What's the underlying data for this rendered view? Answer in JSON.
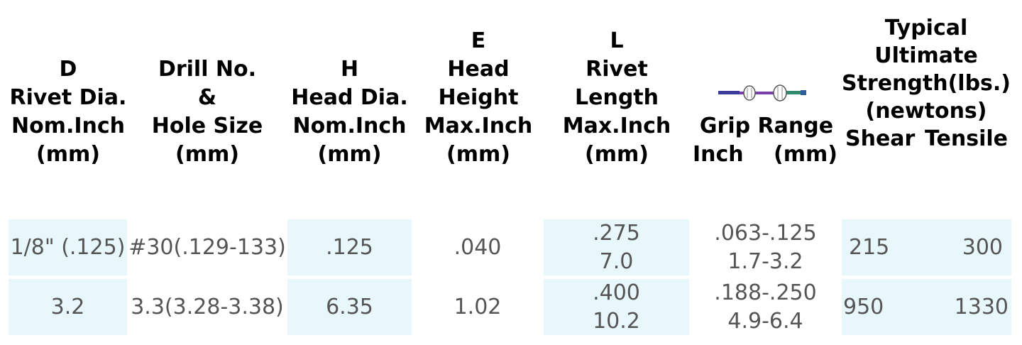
{
  "headers": {
    "col1": [
      "D",
      "Rivet Dia.",
      "Nom.Inch",
      "(mm)"
    ],
    "col2": [
      "Drill No.",
      "&",
      "Hole Size",
      "(mm)"
    ],
    "col3": [
      "H",
      "Head Dia.",
      "Nom.Inch",
      "(mm)"
    ],
    "col4": [
      "E",
      "Head",
      "Height",
      "Max.Inch",
      "(mm)"
    ],
    "col5": [
      "L",
      "Rivet",
      "Length",
      "Max.Inch",
      "(mm)"
    ],
    "col6_title": "Grip Range",
    "col6_inch": "Inch",
    "col6_mm": "(mm)",
    "col7": [
      "Typical",
      "Ultimate",
      "Strength(lbs.)",
      "(newtons)"
    ],
    "col7_shear": "Shear",
    "col7_tensile": "Tensile"
  },
  "rows": [
    {
      "rivet_dia": "1/8\" (.125)",
      "drill": "#30(.129-133)",
      "head_dia": ".125",
      "head_height": ".040",
      "length_1": ".275",
      "length_2": "7.0",
      "grip_1": ".063-.125",
      "grip_2": "1.7-3.2",
      "shear": "215",
      "tensile": "300"
    },
    {
      "rivet_dia": "3.2",
      "drill": "3.3(3.28-3.38)",
      "head_dia": "6.35",
      "head_height": "1.02",
      "length_1": ".400",
      "length_2": "10.2",
      "grip_1": ".188-.250",
      "grip_2": "4.9-6.4",
      "shear": "950",
      "tensile": "1330"
    }
  ],
  "colors": {
    "shade": "#e8f7fb",
    "header_text": "#000000",
    "cell_text": "#555555"
  },
  "icons": {
    "grip_image": "rivet-illustration"
  }
}
